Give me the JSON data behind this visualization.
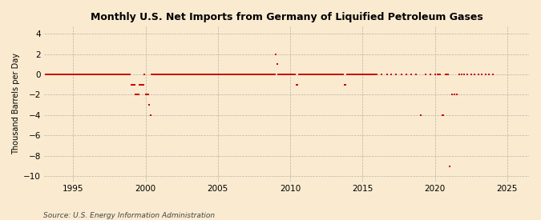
{
  "title": "Monthly U.S. Net Imports from Germany of Liquified Petroleum Gases",
  "ylabel": "Thousand Barrels per Day",
  "source": "Source: U.S. Energy Information Administration",
  "xlim": [
    1993.0,
    2026.5
  ],
  "ylim": [
    -10.5,
    4.8
  ],
  "yticks": [
    -10,
    -8,
    -6,
    -4,
    -2,
    0,
    2,
    4
  ],
  "xticks": [
    1995,
    2000,
    2005,
    2010,
    2015,
    2020,
    2025
  ],
  "background_color": "#faebd0",
  "grid_color": "#999999",
  "marker_color": "#cc0000",
  "marker_size": 3.5,
  "data_points": [
    [
      1993.08,
      0
    ],
    [
      1993.17,
      0
    ],
    [
      1993.25,
      0
    ],
    [
      1993.33,
      0
    ],
    [
      1993.42,
      0
    ],
    [
      1993.5,
      0
    ],
    [
      1993.58,
      0
    ],
    [
      1993.67,
      0
    ],
    [
      1993.75,
      0
    ],
    [
      1993.83,
      0
    ],
    [
      1993.92,
      0
    ],
    [
      1994.0,
      0
    ],
    [
      1994.08,
      0
    ],
    [
      1994.17,
      0
    ],
    [
      1994.25,
      0
    ],
    [
      1994.33,
      0
    ],
    [
      1994.42,
      0
    ],
    [
      1994.5,
      0
    ],
    [
      1994.58,
      0
    ],
    [
      1994.67,
      0
    ],
    [
      1994.75,
      0
    ],
    [
      1994.83,
      0
    ],
    [
      1994.92,
      0
    ],
    [
      1995.0,
      0
    ],
    [
      1995.08,
      0
    ],
    [
      1995.17,
      0
    ],
    [
      1995.25,
      0
    ],
    [
      1995.33,
      0
    ],
    [
      1995.42,
      0
    ],
    [
      1995.5,
      0
    ],
    [
      1995.58,
      0
    ],
    [
      1995.67,
      0
    ],
    [
      1995.75,
      0
    ],
    [
      1995.83,
      0
    ],
    [
      1995.92,
      0
    ],
    [
      1996.0,
      0
    ],
    [
      1996.08,
      0
    ],
    [
      1996.17,
      0
    ],
    [
      1996.25,
      0
    ],
    [
      1996.33,
      0
    ],
    [
      1996.42,
      0
    ],
    [
      1996.5,
      0
    ],
    [
      1996.58,
      0
    ],
    [
      1996.67,
      0
    ],
    [
      1996.75,
      0
    ],
    [
      1996.83,
      0
    ],
    [
      1996.92,
      0
    ],
    [
      1997.0,
      0
    ],
    [
      1997.08,
      0
    ],
    [
      1997.17,
      0
    ],
    [
      1997.25,
      0
    ],
    [
      1997.33,
      0
    ],
    [
      1997.42,
      0
    ],
    [
      1997.5,
      0
    ],
    [
      1997.58,
      0
    ],
    [
      1997.67,
      0
    ],
    [
      1997.75,
      0
    ],
    [
      1997.83,
      0
    ],
    [
      1997.92,
      0
    ],
    [
      1998.0,
      0
    ],
    [
      1998.08,
      0
    ],
    [
      1998.17,
      0
    ],
    [
      1998.25,
      0
    ],
    [
      1998.33,
      0
    ],
    [
      1998.42,
      0
    ],
    [
      1998.5,
      0
    ],
    [
      1998.58,
      0
    ],
    [
      1998.67,
      0
    ],
    [
      1998.75,
      0
    ],
    [
      1998.83,
      0
    ],
    [
      1998.92,
      0
    ],
    [
      1999.0,
      -1
    ],
    [
      1999.08,
      -1
    ],
    [
      1999.17,
      -1
    ],
    [
      1999.25,
      -1
    ],
    [
      1999.33,
      -2
    ],
    [
      1999.42,
      -2
    ],
    [
      1999.5,
      -2
    ],
    [
      1999.58,
      -1
    ],
    [
      1999.67,
      -1
    ],
    [
      1999.75,
      -1
    ],
    [
      1999.83,
      -1
    ],
    [
      1999.92,
      0
    ],
    [
      2000.0,
      -2
    ],
    [
      2000.08,
      -2
    ],
    [
      2000.17,
      -2
    ],
    [
      2000.25,
      -3
    ],
    [
      2000.33,
      -4
    ],
    [
      2000.42,
      0
    ],
    [
      2000.5,
      0
    ],
    [
      2000.58,
      0
    ],
    [
      2000.67,
      0
    ],
    [
      2000.75,
      0
    ],
    [
      2000.83,
      0
    ],
    [
      2000.92,
      0
    ],
    [
      2001.0,
      0
    ],
    [
      2001.08,
      0
    ],
    [
      2001.17,
      0
    ],
    [
      2001.25,
      0
    ],
    [
      2001.33,
      0
    ],
    [
      2001.42,
      0
    ],
    [
      2001.5,
      0
    ],
    [
      2001.58,
      0
    ],
    [
      2001.67,
      0
    ],
    [
      2001.75,
      0
    ],
    [
      2001.83,
      0
    ],
    [
      2001.92,
      0
    ],
    [
      2002.0,
      0
    ],
    [
      2002.08,
      0
    ],
    [
      2002.17,
      0
    ],
    [
      2002.25,
      0
    ],
    [
      2002.33,
      0
    ],
    [
      2002.42,
      0
    ],
    [
      2002.5,
      0
    ],
    [
      2002.58,
      0
    ],
    [
      2002.67,
      0
    ],
    [
      2002.75,
      0
    ],
    [
      2002.83,
      0
    ],
    [
      2002.92,
      0
    ],
    [
      2003.0,
      0
    ],
    [
      2003.08,
      0
    ],
    [
      2003.17,
      0
    ],
    [
      2003.25,
      0
    ],
    [
      2003.33,
      0
    ],
    [
      2003.42,
      0
    ],
    [
      2003.5,
      0
    ],
    [
      2003.58,
      0
    ],
    [
      2003.67,
      0
    ],
    [
      2003.75,
      0
    ],
    [
      2003.83,
      0
    ],
    [
      2003.92,
      0
    ],
    [
      2004.0,
      0
    ],
    [
      2004.08,
      0
    ],
    [
      2004.17,
      0
    ],
    [
      2004.25,
      0
    ],
    [
      2004.33,
      0
    ],
    [
      2004.42,
      0
    ],
    [
      2004.5,
      0
    ],
    [
      2004.58,
      0
    ],
    [
      2004.67,
      0
    ],
    [
      2004.75,
      0
    ],
    [
      2004.83,
      0
    ],
    [
      2004.92,
      0
    ],
    [
      2005.0,
      0
    ],
    [
      2005.08,
      0
    ],
    [
      2005.17,
      0
    ],
    [
      2005.25,
      0
    ],
    [
      2005.33,
      0
    ],
    [
      2005.42,
      0
    ],
    [
      2005.5,
      0
    ],
    [
      2005.58,
      0
    ],
    [
      2005.67,
      0
    ],
    [
      2005.75,
      0
    ],
    [
      2005.83,
      0
    ],
    [
      2005.92,
      0
    ],
    [
      2006.0,
      0
    ],
    [
      2006.08,
      0
    ],
    [
      2006.17,
      0
    ],
    [
      2006.25,
      0
    ],
    [
      2006.33,
      0
    ],
    [
      2006.42,
      0
    ],
    [
      2006.5,
      0
    ],
    [
      2006.58,
      0
    ],
    [
      2006.67,
      0
    ],
    [
      2006.75,
      0
    ],
    [
      2006.83,
      0
    ],
    [
      2006.92,
      0
    ],
    [
      2007.0,
      0
    ],
    [
      2007.08,
      0
    ],
    [
      2007.17,
      0
    ],
    [
      2007.25,
      0
    ],
    [
      2007.33,
      0
    ],
    [
      2007.42,
      0
    ],
    [
      2007.5,
      0
    ],
    [
      2007.58,
      0
    ],
    [
      2007.67,
      0
    ],
    [
      2007.75,
      0
    ],
    [
      2007.83,
      0
    ],
    [
      2007.92,
      0
    ],
    [
      2008.0,
      0
    ],
    [
      2008.08,
      0
    ],
    [
      2008.17,
      0
    ],
    [
      2008.25,
      0
    ],
    [
      2008.33,
      0
    ],
    [
      2008.42,
      0
    ],
    [
      2008.5,
      0
    ],
    [
      2008.58,
      0
    ],
    [
      2008.67,
      0
    ],
    [
      2008.75,
      0
    ],
    [
      2008.83,
      0
    ],
    [
      2008.92,
      0
    ],
    [
      2009.0,
      2
    ],
    [
      2009.08,
      1
    ],
    [
      2009.17,
      0
    ],
    [
      2009.25,
      0
    ],
    [
      2009.33,
      0
    ],
    [
      2009.42,
      0
    ],
    [
      2009.5,
      0
    ],
    [
      2009.58,
      0
    ],
    [
      2009.67,
      0
    ],
    [
      2009.75,
      0
    ],
    [
      2009.83,
      0
    ],
    [
      2009.92,
      0
    ],
    [
      2010.0,
      0
    ],
    [
      2010.08,
      0
    ],
    [
      2010.17,
      0
    ],
    [
      2010.25,
      0
    ],
    [
      2010.33,
      0
    ],
    [
      2010.42,
      -1
    ],
    [
      2010.5,
      -1
    ],
    [
      2010.58,
      0
    ],
    [
      2010.67,
      0
    ],
    [
      2010.75,
      0
    ],
    [
      2010.83,
      0
    ],
    [
      2010.92,
      0
    ],
    [
      2011.0,
      0
    ],
    [
      2011.08,
      0
    ],
    [
      2011.17,
      0
    ],
    [
      2011.25,
      0
    ],
    [
      2011.33,
      0
    ],
    [
      2011.42,
      0
    ],
    [
      2011.5,
      0
    ],
    [
      2011.58,
      0
    ],
    [
      2011.67,
      0
    ],
    [
      2011.75,
      0
    ],
    [
      2011.83,
      0
    ],
    [
      2011.92,
      0
    ],
    [
      2012.0,
      0
    ],
    [
      2012.08,
      0
    ],
    [
      2012.17,
      0
    ],
    [
      2012.25,
      0
    ],
    [
      2012.33,
      0
    ],
    [
      2012.42,
      0
    ],
    [
      2012.5,
      0
    ],
    [
      2012.58,
      0
    ],
    [
      2012.67,
      0
    ],
    [
      2012.75,
      0
    ],
    [
      2012.83,
      0
    ],
    [
      2012.92,
      0
    ],
    [
      2013.0,
      0
    ],
    [
      2013.08,
      0
    ],
    [
      2013.17,
      0
    ],
    [
      2013.25,
      0
    ],
    [
      2013.33,
      0
    ],
    [
      2013.42,
      0
    ],
    [
      2013.5,
      0
    ],
    [
      2013.58,
      0
    ],
    [
      2013.67,
      0
    ],
    [
      2013.75,
      -1
    ],
    [
      2013.83,
      -1
    ],
    [
      2013.92,
      0
    ],
    [
      2014.0,
      0
    ],
    [
      2014.08,
      0
    ],
    [
      2014.17,
      0
    ],
    [
      2014.25,
      0
    ],
    [
      2014.33,
      0
    ],
    [
      2014.42,
      0
    ],
    [
      2014.5,
      0
    ],
    [
      2014.58,
      0
    ],
    [
      2014.67,
      0
    ],
    [
      2014.75,
      0
    ],
    [
      2014.83,
      0
    ],
    [
      2014.92,
      0
    ],
    [
      2015.0,
      0
    ],
    [
      2015.08,
      0
    ],
    [
      2015.17,
      0
    ],
    [
      2015.25,
      0
    ],
    [
      2015.33,
      0
    ],
    [
      2015.42,
      0
    ],
    [
      2015.5,
      0
    ],
    [
      2015.58,
      0
    ],
    [
      2015.67,
      0
    ],
    [
      2015.75,
      0
    ],
    [
      2015.83,
      0
    ],
    [
      2015.92,
      0
    ],
    [
      2016.0,
      0
    ],
    [
      2016.33,
      0
    ],
    [
      2016.67,
      0
    ],
    [
      2017.0,
      0
    ],
    [
      2017.33,
      0
    ],
    [
      2017.67,
      0
    ],
    [
      2018.0,
      0
    ],
    [
      2018.33,
      0
    ],
    [
      2018.67,
      0
    ],
    [
      2019.0,
      -4
    ],
    [
      2019.33,
      0
    ],
    [
      2019.67,
      0
    ],
    [
      2020.0,
      0
    ],
    [
      2020.17,
      0
    ],
    [
      2020.25,
      0
    ],
    [
      2020.33,
      0
    ],
    [
      2020.5,
      -4
    ],
    [
      2020.58,
      -4
    ],
    [
      2020.75,
      0
    ],
    [
      2020.83,
      0
    ],
    [
      2020.92,
      0
    ],
    [
      2021.0,
      -9
    ],
    [
      2021.17,
      -2
    ],
    [
      2021.33,
      -2
    ],
    [
      2021.5,
      -2
    ],
    [
      2021.67,
      0
    ],
    [
      2021.83,
      0
    ],
    [
      2022.0,
      0
    ],
    [
      2022.25,
      0
    ],
    [
      2022.5,
      0
    ],
    [
      2022.75,
      0
    ],
    [
      2023.0,
      0
    ],
    [
      2023.25,
      0
    ],
    [
      2023.5,
      0
    ],
    [
      2023.75,
      0
    ],
    [
      2024.0,
      0
    ]
  ]
}
